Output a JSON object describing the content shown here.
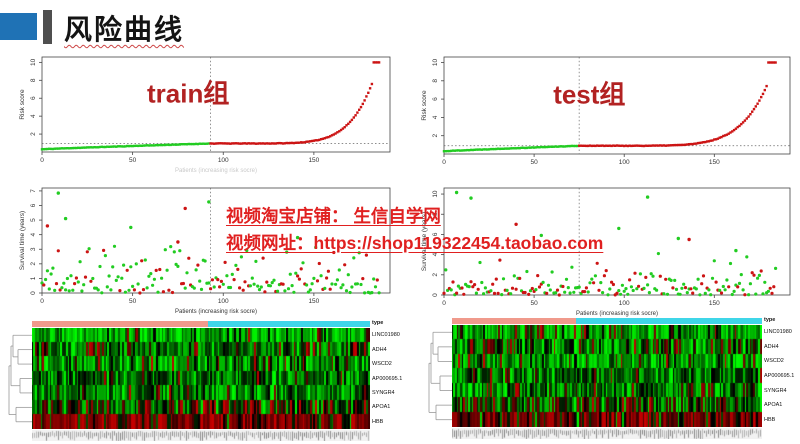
{
  "slide": {
    "title": "风险曲线",
    "accent_square_color": "#1f72b5",
    "accent_bar_color": "#4f4f4f",
    "background": "#ffffff"
  },
  "watermark": {
    "line1": "视频淘宝店铺： 生信自学网",
    "line2": "视频网址：https://shop119322454.taobao.com",
    "color": "#e02020"
  },
  "chart_data": [
    {
      "id": "train-risk",
      "type": "scatter",
      "kind": "risk",
      "title": "train组",
      "title_color": "#b22222",
      "ylabel": "Risk score",
      "xlabel": "Patients (increasing risk socre)",
      "xlabel_color": "#c9c9c9",
      "xticks": [
        0,
        50,
        100,
        150
      ],
      "yticks": [
        2,
        4,
        6,
        8,
        10
      ],
      "xlim": [
        0,
        192
      ],
      "ylim": [
        0,
        10.6
      ],
      "n_patients": 187,
      "cutoff_index": 93,
      "threshold_risk": 0.95,
      "risk_min": 0.3,
      "risk_max": 10,
      "low_risk_color": "#22cc22",
      "high_risk_color": "#cc1414",
      "legend_note": "green = low risk, red = high risk, dotted lines = cutoff patient and risk threshold",
      "seed": 11
    },
    {
      "id": "test-risk",
      "type": "scatter",
      "kind": "risk",
      "title": "test组",
      "title_color": "#b22222",
      "ylabel": "Risk score",
      "xlabel": "",
      "xlabel_color": "#c9c9c9",
      "xticks": [
        0,
        50,
        100,
        150
      ],
      "yticks": [
        2,
        4,
        6,
        8,
        10
      ],
      "xlim": [
        0,
        192
      ],
      "ylim": [
        0,
        10.6
      ],
      "n_patients": 185,
      "cutoff_index": 75,
      "threshold_risk": 0.9,
      "risk_min": 0.3,
      "risk_max": 10,
      "low_risk_color": "#22cc22",
      "high_risk_color": "#cc1414",
      "legend_note": "green = low risk, red = high risk, dotted lines = cutoff patient and risk threshold",
      "seed": 22
    },
    {
      "id": "train-survival",
      "type": "scatter",
      "kind": "survival",
      "title": "",
      "title_color": "#b22222",
      "ylabel": "Survival time (years)",
      "xlabel": "Patients (increasing risk socre)",
      "xlabel_color": "#333333",
      "xticks": [
        0,
        50,
        100,
        150
      ],
      "yticks": [
        0,
        1,
        2,
        3,
        4,
        5,
        6,
        7
      ],
      "xlim": [
        0,
        192
      ],
      "ylim": [
        0,
        7.2
      ],
      "n_patients": 187,
      "cutoff_index": 93,
      "mean_survival": 1.15,
      "p_dead": 0.38,
      "alive_color": "#22cc22",
      "dead_color": "#cc1414",
      "outliers": [
        {
          "x": 9,
          "y": 6.85,
          "c": "#22cc22"
        },
        {
          "x": 92,
          "y": 6.25,
          "c": "#22cc22"
        },
        {
          "x": 79,
          "y": 5.8,
          "c": "#cc1414"
        },
        {
          "x": 13,
          "y": 5.1,
          "c": "#22cc22"
        },
        {
          "x": 3,
          "y": 4.6,
          "c": "#cc1414"
        },
        {
          "x": 49,
          "y": 4.5,
          "c": "#22cc22"
        },
        {
          "x": 141,
          "y": 3.8,
          "c": "#22cc22"
        },
        {
          "x": 75,
          "y": 3.5,
          "c": "#cc1414"
        }
      ],
      "seed": 33
    },
    {
      "id": "test-survival",
      "type": "scatter",
      "kind": "survival",
      "title": "",
      "title_color": "#b22222",
      "ylabel": "Survival time (years)",
      "xlabel": "Patients (increasing risk socre)",
      "xlabel_color": "#333333",
      "xticks": [
        0,
        50,
        100,
        150
      ],
      "yticks": [
        0,
        2,
        4,
        6,
        8,
        10
      ],
      "xlim": [
        0,
        192
      ],
      "ylim": [
        0,
        10.6
      ],
      "n_patients": 185,
      "cutoff_index": 75,
      "mean_survival": 1.0,
      "p_dead": 0.38,
      "alive_color": "#22cc22",
      "dead_color": "#cc1414",
      "outliers": [
        {
          "x": 7,
          "y": 10.15,
          "c": "#22cc22"
        },
        {
          "x": 15,
          "y": 9.6,
          "c": "#22cc22"
        },
        {
          "x": 113,
          "y": 9.7,
          "c": "#22cc22"
        },
        {
          "x": 40,
          "y": 7.0,
          "c": "#cc1414"
        },
        {
          "x": 97,
          "y": 6.6,
          "c": "#22cc22"
        },
        {
          "x": 54,
          "y": 5.9,
          "c": "#22cc22"
        },
        {
          "x": 130,
          "y": 5.6,
          "c": "#22cc22"
        },
        {
          "x": 136,
          "y": 5.5,
          "c": "#cc1414"
        },
        {
          "x": 162,
          "y": 4.4,
          "c": "#22cc22"
        }
      ],
      "seed": 44
    },
    {
      "id": "train-heatmap",
      "type": "heatmap",
      "annotation_label": "type",
      "annotation_colors": [
        "#f09a8c",
        "#3fd6e8"
      ],
      "annotation_split": 0.52,
      "genes": [
        "LINC01980",
        "ADH4",
        "WSCD2",
        "AP000695.1",
        "SYNGR4",
        "APOA1",
        "HBB"
      ],
      "n_samples": 187,
      "low_color": "#00ff00",
      "mid_color": "#000000",
      "high_color": "#cc0000",
      "row_red_bias": [
        0.05,
        0.17,
        0.09,
        0.05,
        0.07,
        0.33,
        0.8
      ],
      "row_green_gamma": [
        0.45,
        1.2,
        0.75,
        1.6,
        1.2,
        1.5,
        3.0
      ],
      "seed": 55
    },
    {
      "id": "test-heatmap",
      "type": "heatmap",
      "annotation_label": "type",
      "annotation_colors": [
        "#f09a8c",
        "#3fd6e8"
      ],
      "annotation_split": 0.4,
      "genes": [
        "LINC01980",
        "ADH4",
        "WSCD2",
        "AP000695.1",
        "SYNGR4",
        "APOA1",
        "HBB"
      ],
      "n_samples": 185,
      "low_color": "#00ff00",
      "mid_color": "#000000",
      "high_color": "#cc0000",
      "row_red_bias": [
        0.06,
        0.15,
        0.08,
        0.05,
        0.07,
        0.3,
        0.75
      ],
      "row_green_gamma": [
        0.5,
        1.1,
        0.7,
        1.5,
        1.1,
        1.4,
        2.6
      ],
      "seed": 66
    }
  ]
}
